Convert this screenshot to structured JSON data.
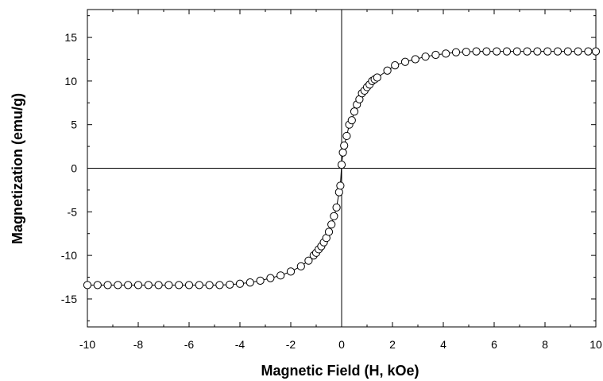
{
  "chart_data": {
    "type": "scatter",
    "xlabel": "Magnetic Field (H, kOe)",
    "ylabel": "Magnetization (emu/g)",
    "xlim": [
      -10,
      10
    ],
    "ylim": [
      -18.2,
      18.2
    ],
    "x_ticks": [
      -10,
      -8,
      -6,
      -4,
      -2,
      0,
      2,
      4,
      6,
      8,
      10
    ],
    "y_ticks": [
      -15,
      -10,
      -5,
      0,
      5,
      10,
      15
    ],
    "x_tick_labels": [
      "-10",
      "-8",
      "-6",
      "-4",
      "-2",
      "0",
      "2",
      "4",
      "6",
      "8",
      "10"
    ],
    "y_tick_labels": [
      "-15",
      "-10",
      "-5",
      "0",
      "5",
      "10",
      "15"
    ],
    "grid": false,
    "legend": "none",
    "zero_lines": true,
    "marker": "open-circle",
    "fit_line": true,
    "series": [
      {
        "points": [
          [
            -10.0,
            -13.4
          ],
          [
            -9.6,
            -13.4
          ],
          [
            -9.2,
            -13.4
          ],
          [
            -8.8,
            -13.4
          ],
          [
            -8.4,
            -13.4
          ],
          [
            -8.0,
            -13.4
          ],
          [
            -7.6,
            -13.4
          ],
          [
            -7.2,
            -13.4
          ],
          [
            -6.8,
            -13.4
          ],
          [
            -6.4,
            -13.4
          ],
          [
            -6.0,
            -13.4
          ],
          [
            -5.6,
            -13.4
          ],
          [
            -5.2,
            -13.4
          ],
          [
            -4.8,
            -13.4
          ],
          [
            -4.4,
            -13.35
          ],
          [
            -4.0,
            -13.25
          ],
          [
            -3.6,
            -13.1
          ],
          [
            -3.2,
            -12.9
          ],
          [
            -2.8,
            -12.6
          ],
          [
            -2.4,
            -12.3
          ],
          [
            -2.0,
            -11.85
          ],
          [
            -1.6,
            -11.25
          ],
          [
            -1.3,
            -10.6
          ],
          [
            -1.1,
            -10.0
          ],
          [
            -1.0,
            -9.7
          ],
          [
            -0.9,
            -9.3
          ],
          [
            -0.8,
            -8.95
          ],
          [
            -0.7,
            -8.5
          ],
          [
            -0.6,
            -8.0
          ],
          [
            -0.5,
            -7.3
          ],
          [
            -0.4,
            -6.45
          ],
          [
            -0.3,
            -5.5
          ],
          [
            -0.2,
            -4.5
          ],
          [
            -0.1,
            -2.75
          ],
          [
            -0.05,
            -2.0
          ],
          [
            0.0,
            0.4
          ],
          [
            0.05,
            1.8
          ],
          [
            0.1,
            2.6
          ],
          [
            0.2,
            3.7
          ],
          [
            0.3,
            5.0
          ],
          [
            0.4,
            5.5
          ],
          [
            0.5,
            6.5
          ],
          [
            0.6,
            7.3
          ],
          [
            0.7,
            7.9
          ],
          [
            0.8,
            8.6
          ],
          [
            0.9,
            8.9
          ],
          [
            1.0,
            9.3
          ],
          [
            1.1,
            9.6
          ],
          [
            1.2,
            10.0
          ],
          [
            1.3,
            10.2
          ],
          [
            1.4,
            10.4
          ],
          [
            1.8,
            11.2
          ],
          [
            2.1,
            11.8
          ],
          [
            2.5,
            12.2
          ],
          [
            2.9,
            12.5
          ],
          [
            3.3,
            12.8
          ],
          [
            3.7,
            13.0
          ],
          [
            4.1,
            13.15
          ],
          [
            4.5,
            13.3
          ],
          [
            4.9,
            13.35
          ],
          [
            5.3,
            13.4
          ],
          [
            5.7,
            13.4
          ],
          [
            6.1,
            13.4
          ],
          [
            6.5,
            13.4
          ],
          [
            6.9,
            13.4
          ],
          [
            7.3,
            13.4
          ],
          [
            7.7,
            13.4
          ],
          [
            8.1,
            13.4
          ],
          [
            8.5,
            13.4
          ],
          [
            8.9,
            13.4
          ],
          [
            9.3,
            13.4
          ],
          [
            9.7,
            13.4
          ],
          [
            10.0,
            13.4
          ]
        ]
      }
    ]
  }
}
